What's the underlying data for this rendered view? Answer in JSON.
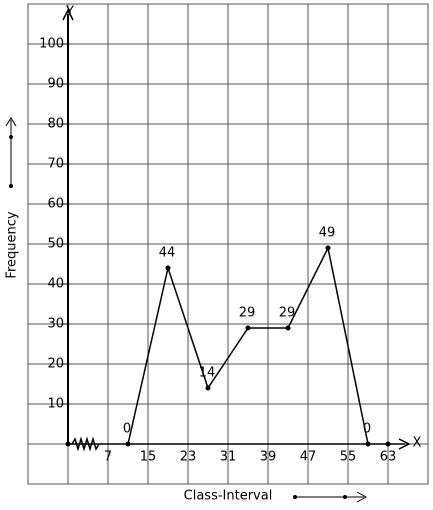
{
  "chart_data": {
    "type": "line",
    "x_label": "Class-Interval",
    "y_label": "Frequency",
    "x_axis_name": "X",
    "y_axis_name": "Y",
    "x": [
      11,
      19,
      27,
      35,
      43,
      51,
      59
    ],
    "series": [
      {
        "values": [
          0,
          44,
          14,
          29,
          29,
          49,
          0
        ],
        "color": "#000000"
      }
    ],
    "xlim": [
      -1,
      71
    ],
    "xticks": [
      7,
      15,
      23,
      31,
      39,
      47,
      55,
      63
    ],
    "ylim": [
      -10,
      110
    ],
    "yticks": [
      10,
      20,
      30,
      40,
      50,
      60,
      70,
      80,
      90,
      100
    ],
    "grid": true
  }
}
